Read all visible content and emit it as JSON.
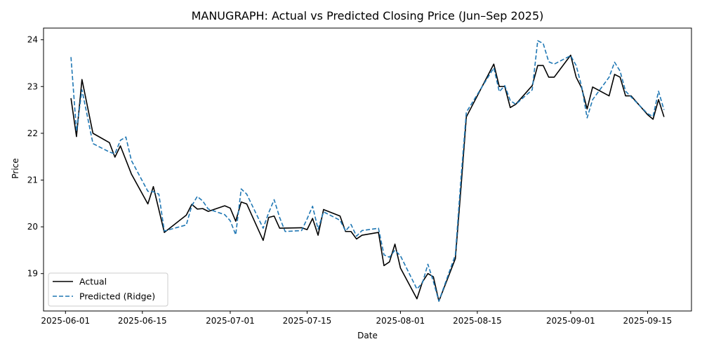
{
  "chart_data": {
    "type": "line",
    "title": "MANUGRAPH: Actual vs Predicted Closing Price (Jun–Sep 2025)",
    "xlabel": "Date",
    "ylabel": "Price",
    "xlim": [
      "2025-05-28",
      "2025-09-23"
    ],
    "ylim": [
      18.2,
      24.25
    ],
    "x_ticks": [
      "2025-06-01",
      "2025-06-15",
      "2025-07-01",
      "2025-07-15",
      "2025-08-01",
      "2025-08-15",
      "2025-09-01",
      "2025-09-15"
    ],
    "y_ticks": [
      19,
      20,
      21,
      22,
      23,
      24
    ],
    "grid": false,
    "legend_position": "lower-left",
    "series": [
      {
        "name": "Actual",
        "color": "#000000",
        "style": "solid",
        "points": [
          [
            "2025-06-02",
            22.75
          ],
          [
            "2025-06-03",
            21.93
          ],
          [
            "2025-06-04",
            23.15
          ],
          [
            "2025-06-06",
            22.0
          ],
          [
            "2025-06-09",
            21.8
          ],
          [
            "2025-06-10",
            21.49
          ],
          [
            "2025-06-11",
            21.73
          ],
          [
            "2025-06-13",
            21.13
          ],
          [
            "2025-06-16",
            20.49
          ],
          [
            "2025-06-17",
            20.86
          ],
          [
            "2025-06-19",
            19.88
          ],
          [
            "2025-06-23",
            20.25
          ],
          [
            "2025-06-24",
            20.48
          ],
          [
            "2025-06-25",
            20.38
          ],
          [
            "2025-06-26",
            20.39
          ],
          [
            "2025-06-27",
            20.33
          ],
          [
            "2025-06-30",
            20.45
          ],
          [
            "2025-07-01",
            20.4
          ],
          [
            "2025-07-02",
            20.12
          ],
          [
            "2025-07-03",
            20.53
          ],
          [
            "2025-07-04",
            20.49
          ],
          [
            "2025-07-07",
            19.71
          ],
          [
            "2025-07-08",
            20.2
          ],
          [
            "2025-07-09",
            20.23
          ],
          [
            "2025-07-10",
            19.97
          ],
          [
            "2025-07-14",
            19.98
          ],
          [
            "2025-07-15",
            19.94
          ],
          [
            "2025-07-16",
            20.18
          ],
          [
            "2025-07-17",
            19.82
          ],
          [
            "2025-07-18",
            20.37
          ],
          [
            "2025-07-21",
            20.23
          ],
          [
            "2025-07-22",
            19.9
          ],
          [
            "2025-07-23",
            19.9
          ],
          [
            "2025-07-24",
            19.74
          ],
          [
            "2025-07-25",
            19.82
          ],
          [
            "2025-07-28",
            19.88
          ],
          [
            "2025-07-29",
            19.17
          ],
          [
            "2025-07-30",
            19.25
          ],
          [
            "2025-07-31",
            19.63
          ],
          [
            "2025-08-01",
            19.12
          ],
          [
            "2025-08-04",
            18.46
          ],
          [
            "2025-08-05",
            18.82
          ],
          [
            "2025-08-06",
            19.0
          ],
          [
            "2025-08-07",
            18.93
          ],
          [
            "2025-08-08",
            18.41
          ],
          [
            "2025-08-11",
            19.32
          ],
          [
            "2025-08-12",
            20.8
          ],
          [
            "2025-08-13",
            22.35
          ],
          [
            "2025-08-18",
            23.48
          ],
          [
            "2025-08-19",
            23.0
          ],
          [
            "2025-08-20",
            23.0
          ],
          [
            "2025-08-21",
            22.55
          ],
          [
            "2025-08-22",
            22.62
          ],
          [
            "2025-08-25",
            23.02
          ],
          [
            "2025-08-26",
            23.45
          ],
          [
            "2025-08-27",
            23.45
          ],
          [
            "2025-08-28",
            23.2
          ],
          [
            "2025-08-29",
            23.2
          ],
          [
            "2025-09-01",
            23.67
          ],
          [
            "2025-09-02",
            23.2
          ],
          [
            "2025-09-03",
            22.97
          ],
          [
            "2025-09-04",
            22.52
          ],
          [
            "2025-09-05",
            22.99
          ],
          [
            "2025-09-08",
            22.8
          ],
          [
            "2025-09-09",
            23.26
          ],
          [
            "2025-09-10",
            23.2
          ],
          [
            "2025-09-11",
            22.8
          ],
          [
            "2025-09-12",
            22.8
          ],
          [
            "2025-09-15",
            22.4
          ],
          [
            "2025-09-16",
            22.3
          ],
          [
            "2025-09-17",
            22.72
          ],
          [
            "2025-09-18",
            22.35
          ]
        ]
      },
      {
        "name": "Predicted (Ridge)",
        "color": "#1f77b4",
        "style": "dashed",
        "points": [
          [
            "2025-06-02",
            23.63
          ],
          [
            "2025-06-03",
            22.05
          ],
          [
            "2025-06-04",
            22.93
          ],
          [
            "2025-06-06",
            21.78
          ],
          [
            "2025-06-09",
            21.6
          ],
          [
            "2025-06-10",
            21.56
          ],
          [
            "2025-06-11",
            21.85
          ],
          [
            "2025-06-12",
            21.92
          ],
          [
            "2025-06-13",
            21.42
          ],
          [
            "2025-06-16",
            20.76
          ],
          [
            "2025-06-17",
            20.75
          ],
          [
            "2025-06-18",
            20.7
          ],
          [
            "2025-06-19",
            19.91
          ],
          [
            "2025-06-23",
            20.04
          ],
          [
            "2025-06-24",
            20.45
          ],
          [
            "2025-06-25",
            20.65
          ],
          [
            "2025-06-26",
            20.55
          ],
          [
            "2025-06-27",
            20.38
          ],
          [
            "2025-06-30",
            20.26
          ],
          [
            "2025-07-01",
            20.13
          ],
          [
            "2025-07-02",
            19.83
          ],
          [
            "2025-07-03",
            20.81
          ],
          [
            "2025-07-04",
            20.7
          ],
          [
            "2025-07-07",
            19.97
          ],
          [
            "2025-07-08",
            20.3
          ],
          [
            "2025-07-09",
            20.58
          ],
          [
            "2025-07-10",
            20.2
          ],
          [
            "2025-07-11",
            19.9
          ],
          [
            "2025-07-14",
            19.92
          ],
          [
            "2025-07-15",
            20.17
          ],
          [
            "2025-07-16",
            20.44
          ],
          [
            "2025-07-17",
            19.95
          ],
          [
            "2025-07-18",
            20.32
          ],
          [
            "2025-07-21",
            20.14
          ],
          [
            "2025-07-22",
            19.91
          ],
          [
            "2025-07-23",
            20.05
          ],
          [
            "2025-07-24",
            19.8
          ],
          [
            "2025-07-25",
            19.92
          ],
          [
            "2025-07-28",
            19.97
          ],
          [
            "2025-07-29",
            19.4
          ],
          [
            "2025-07-30",
            19.35
          ],
          [
            "2025-07-31",
            19.5
          ],
          [
            "2025-08-01",
            19.38
          ],
          [
            "2025-08-04",
            18.67
          ],
          [
            "2025-08-05",
            18.8
          ],
          [
            "2025-08-06",
            19.2
          ],
          [
            "2025-08-07",
            18.83
          ],
          [
            "2025-08-08",
            18.41
          ],
          [
            "2025-08-11",
            19.4
          ],
          [
            "2025-08-12",
            21.0
          ],
          [
            "2025-08-13",
            22.45
          ],
          [
            "2025-08-18",
            23.4
          ],
          [
            "2025-08-19",
            22.89
          ],
          [
            "2025-08-20",
            23.02
          ],
          [
            "2025-08-21",
            22.7
          ],
          [
            "2025-08-22",
            22.62
          ],
          [
            "2025-08-25",
            22.93
          ],
          [
            "2025-08-26",
            23.98
          ],
          [
            "2025-08-27",
            23.92
          ],
          [
            "2025-08-28",
            23.53
          ],
          [
            "2025-08-29",
            23.48
          ],
          [
            "2025-09-01",
            23.66
          ],
          [
            "2025-09-02",
            23.45
          ],
          [
            "2025-09-03",
            23.0
          ],
          [
            "2025-09-04",
            22.33
          ],
          [
            "2025-09-05",
            22.72
          ],
          [
            "2025-09-08",
            23.2
          ],
          [
            "2025-09-09",
            23.52
          ],
          [
            "2025-09-10",
            23.33
          ],
          [
            "2025-09-11",
            22.9
          ],
          [
            "2025-09-12",
            22.78
          ],
          [
            "2025-09-15",
            22.42
          ],
          [
            "2025-09-16",
            22.36
          ],
          [
            "2025-09-17",
            22.9
          ],
          [
            "2025-09-18",
            22.5
          ]
        ]
      }
    ]
  }
}
